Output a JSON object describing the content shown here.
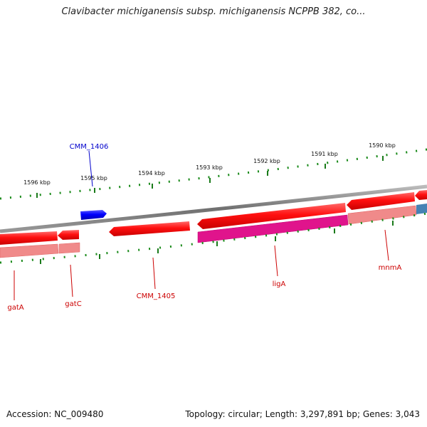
{
  "title": "Clavibacter michiganensis subsp. michiganensis NCPPB 382, co...",
  "footer": {
    "accession": "Accession: NC_009480",
    "topology": "Topology: circular; Length: 3,297,891 bp; Genes: 3,043"
  },
  "ruler_labels": [
    "1596 kbp",
    "1595 kbp",
    "1594 kbp",
    "1593 kbp",
    "1592 kbp",
    "1591 kbp",
    "1590 kbp"
  ],
  "genes_above": [
    {
      "name": "CMM_1406",
      "color": "#0000cc"
    }
  ],
  "genes_below": [
    {
      "name": "gatA",
      "color": "#cc0000"
    },
    {
      "name": "gatC",
      "color": "#cc0000"
    },
    {
      "name": "CMM_1405",
      "color": "#cc0000"
    },
    {
      "name": "ligA",
      "color": "#cc0000"
    },
    {
      "name": "mnmA",
      "color": "#cc0000"
    }
  ],
  "colors": {
    "backbone": "#777777",
    "gene_red": "#ee0000",
    "gene_blue": "#0000ee",
    "feature_pink": "#f08080",
    "feature_magenta": "#e0148c",
    "feature_steelblue": "#4682b4",
    "tick_green": "#006600"
  }
}
